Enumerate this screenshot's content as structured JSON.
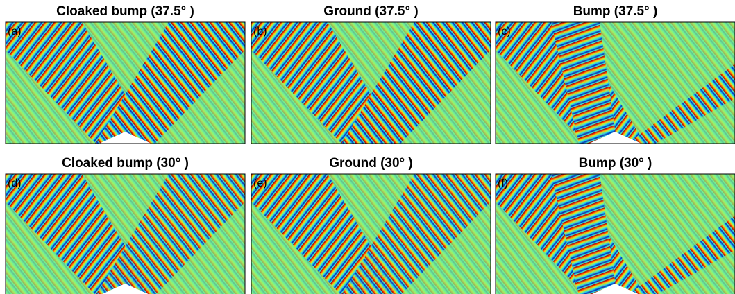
{
  "panels": [
    {
      "title": "Cloaked bump (37.5° )",
      "label": "(a)"
    },
    {
      "title": "Ground (37.5° )",
      "label": "(b)"
    },
    {
      "title": "Bump (37.5° )",
      "label": "(c)"
    },
    {
      "title": "Cloaked bump (30° )",
      "label": "(d)"
    },
    {
      "title": "Ground (30° )",
      "label": "(e)"
    },
    {
      "title": "Bump (30° )",
      "label": "(f)"
    }
  ]
}
